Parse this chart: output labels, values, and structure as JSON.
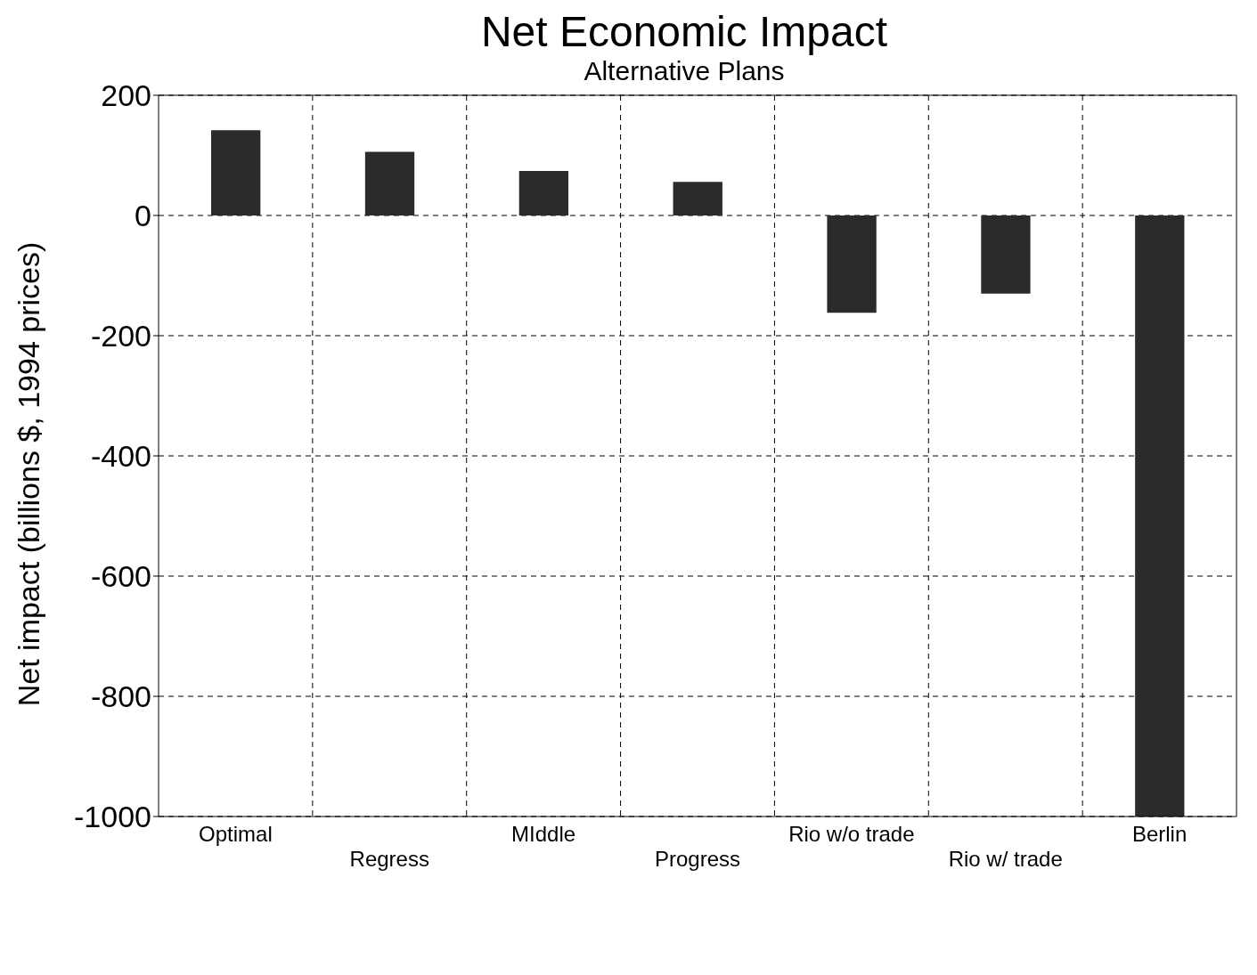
{
  "chart_data": {
    "type": "bar",
    "title": "Net Economic Impact",
    "subtitle": "Alternative Plans",
    "ylabel": "Net impact (billions $, 1994 prices)",
    "categories": [
      "Optimal",
      "Regress",
      "MIddle",
      "Progress",
      "Rio w/o trade",
      "Rio w/ trade",
      "Berlin"
    ],
    "values": [
      142,
      106,
      74,
      56,
      -162,
      -130,
      -1000
    ],
    "color": "#2b2b2b",
    "ylim": [
      -1000,
      200
    ],
    "yticks": [
      -1000,
      -800,
      -600,
      -400,
      -200,
      0,
      200
    ],
    "grid": true
  }
}
